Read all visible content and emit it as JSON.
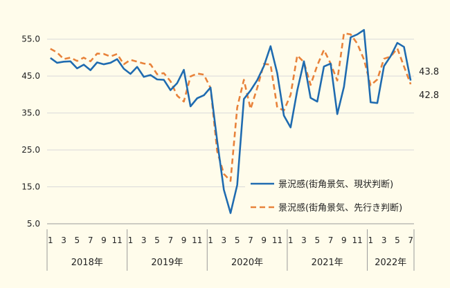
{
  "chart_data": {
    "type": "line",
    "ylim": [
      5,
      60
    ],
    "yticks": [
      "5.0",
      "15.0",
      "25.0",
      "35.0",
      "45.0",
      "55.0"
    ],
    "month_labels": [
      "1",
      "3",
      "5",
      "7",
      "9",
      "11",
      "1",
      "3",
      "5",
      "7",
      "9",
      "11",
      "1",
      "3",
      "5",
      "7",
      "9",
      "11",
      "1",
      "3",
      "5",
      "7",
      "9",
      "11",
      "1",
      "3",
      "5",
      "7"
    ],
    "years": [
      {
        "label": "2018年",
        "start": 1,
        "count": 12
      },
      {
        "label": "2019年",
        "start": 13,
        "count": 12
      },
      {
        "label": "2020年",
        "start": 25,
        "count": 12
      },
      {
        "label": "2021年",
        "start": 37,
        "count": 12
      },
      {
        "label": "2022年",
        "start": 49,
        "count": 7
      }
    ],
    "series": [
      {
        "name": "景況感(街角景気、現状判断)",
        "color": "#1f6bb0",
        "style": "solid",
        "end_label": "43.8",
        "values": [
          49.9,
          48.6,
          48.9,
          49.0,
          47.1,
          48.1,
          46.6,
          48.7,
          48.2,
          48.6,
          49.6,
          47.0,
          45.6,
          47.5,
          44.8,
          45.3,
          44.1,
          44.0,
          41.2,
          43.1,
          46.7,
          36.8,
          39.0,
          39.8,
          41.9,
          27.4,
          14.2,
          7.9,
          15.5,
          38.8,
          41.1,
          43.9,
          47.7,
          53.1,
          45.8,
          34.3,
          31.1,
          41.1,
          49.0,
          39.1,
          38.1,
          47.6,
          48.4,
          34.7,
          42.1,
          55.5,
          56.3,
          57.5,
          37.9,
          37.7,
          47.7,
          50.4,
          54.0,
          52.9,
          43.8
        ]
      },
      {
        "name": "景況感(街角景気、先行き判断)",
        "color": "#e8823a",
        "style": "dashed",
        "end_label": "42.8",
        "values": [
          52.4,
          51.4,
          49.6,
          50.0,
          49.1,
          50.0,
          49.0,
          51.1,
          51.0,
          50.3,
          51.0,
          48.2,
          49.4,
          48.9,
          48.4,
          48.2,
          45.5,
          45.8,
          43.6,
          39.7,
          38.1,
          44.9,
          45.7,
          45.4,
          41.8,
          24.6,
          18.5,
          16.6,
          36.5,
          44.0,
          36.1,
          41.8,
          48.3,
          48.1,
          36.5,
          35.7,
          39.9,
          50.6,
          48.8,
          42.6,
          47.9,
          52.1,
          48.4,
          43.8,
          56.6,
          56.3,
          53.8,
          49.5,
          42.5,
          44.1,
          49.7,
          50.3,
          52.5,
          47.6,
          42.8
        ]
      }
    ]
  }
}
